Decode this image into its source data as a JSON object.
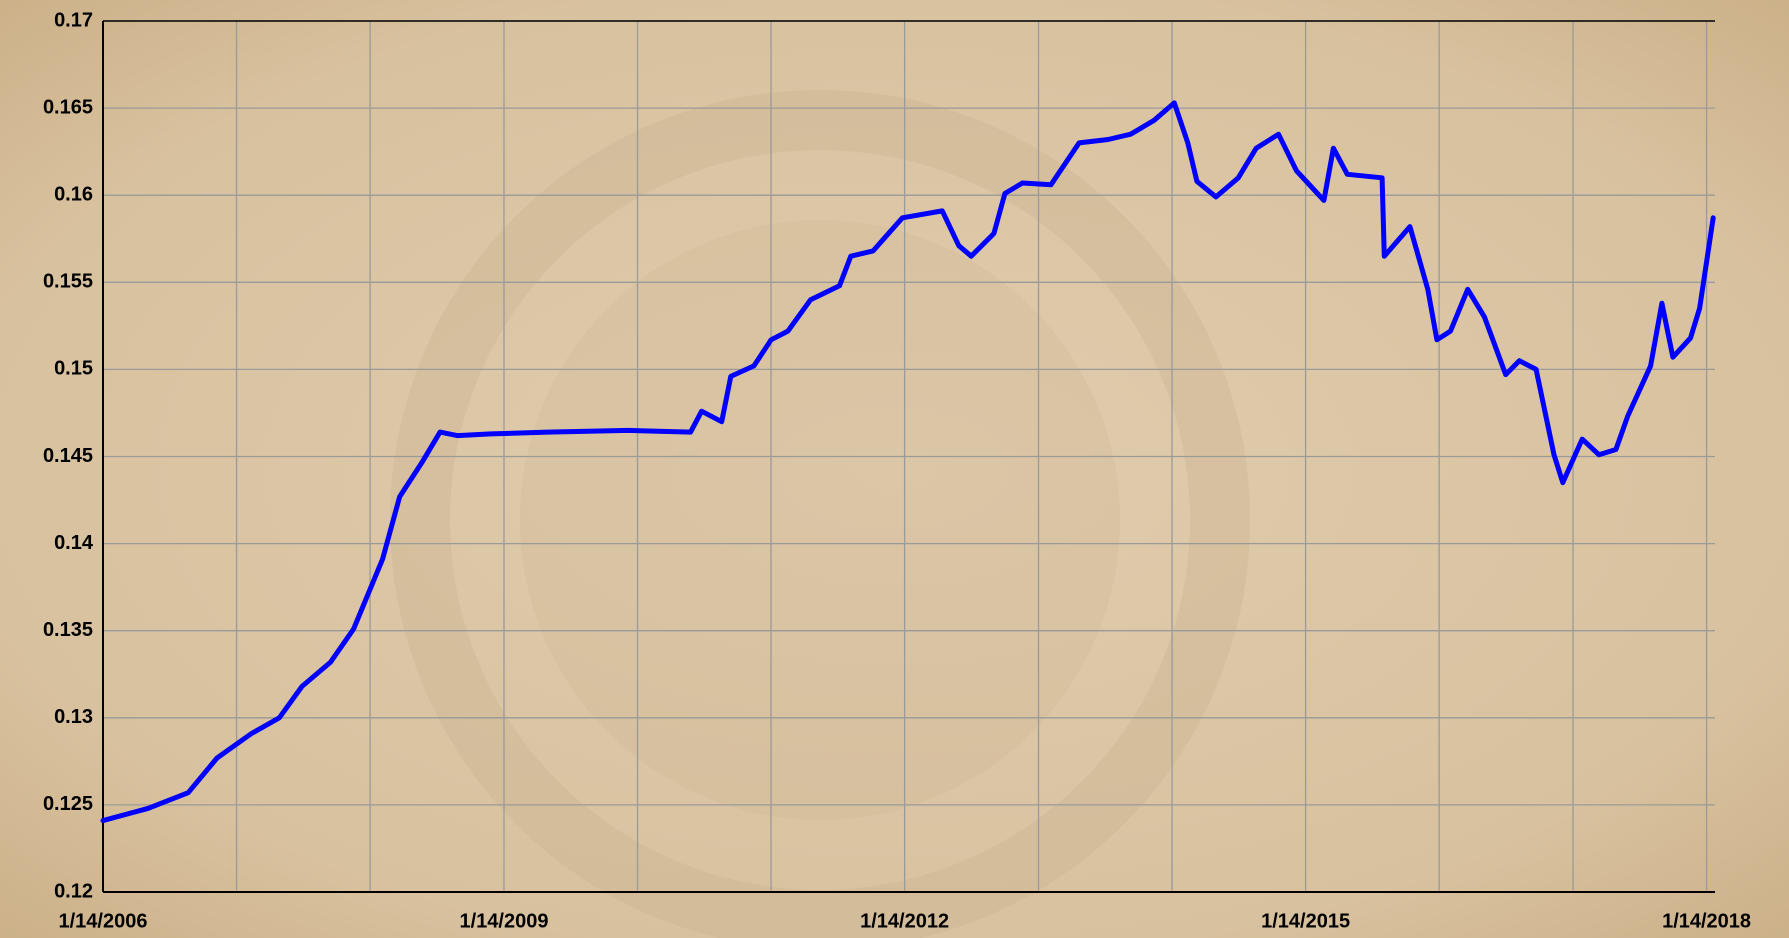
{
  "chart_data": {
    "type": "line",
    "x": [
      "2006-01-14",
      "2006-05-17",
      "2006-09-04",
      "2006-11-22",
      "2007-02-24",
      "2007-05-11",
      "2007-07-12",
      "2007-09-28",
      "2007-11-30",
      "2008-02-17",
      "2008-04-04",
      "2008-06-05",
      "2008-07-23",
      "2008-09-08",
      "2008-12-10",
      "2009-05-14",
      "2009-12-20",
      "2010-06-08",
      "2010-07-08",
      "2010-09-01",
      "2010-09-26",
      "2010-11-28",
      "2011-01-14",
      "2011-03-01",
      "2011-05-02",
      "2011-07-20",
      "2011-08-20",
      "2011-10-20",
      "2012-01-08",
      "2012-04-26",
      "2012-06-10",
      "2012-07-14",
      "2012-09-14",
      "2012-10-14",
      "2012-12-01",
      "2013-02-17",
      "2013-05-05",
      "2013-07-23",
      "2013-09-23",
      "2013-11-26",
      "2014-01-20",
      "2014-02-26",
      "2014-03-23",
      "2014-05-14",
      "2014-07-14",
      "2014-09-01",
      "2014-11-01",
      "2014-12-20",
      "2015-01-20",
      "2015-03-05",
      "2015-03-31",
      "2015-05-08",
      "2015-08-11",
      "2015-08-17",
      "2015-10-26",
      "2015-12-14",
      "2016-01-08",
      "2016-02-14",
      "2016-04-01",
      "2016-05-17",
      "2016-07-14",
      "2016-08-20",
      "2016-10-05",
      "2016-11-23",
      "2016-12-17",
      "2017-02-08",
      "2017-03-26",
      "2017-05-11",
      "2017-06-12",
      "2017-08-14",
      "2017-09-14",
      "2017-10-14",
      "2017-12-01",
      "2017-12-26",
      "2018-02-01"
    ],
    "series": [
      {
        "color": "#0000ff",
        "values": [
          0.1241,
          0.1248,
          0.1257,
          0.1277,
          0.1291,
          0.13,
          0.1318,
          0.1332,
          0.1351,
          0.1391,
          0.1427,
          0.1447,
          0.1464,
          0.1462,
          0.1463,
          0.1464,
          0.1465,
          0.1464,
          0.1476,
          0.147,
          0.1496,
          0.1502,
          0.1517,
          0.1522,
          0.154,
          0.1548,
          0.1565,
          0.1568,
          0.1587,
          0.1591,
          0.1571,
          0.1565,
          0.1578,
          0.1601,
          0.1607,
          0.1606,
          0.163,
          0.1632,
          0.1635,
          0.1643,
          0.1653,
          0.163,
          0.1608,
          0.1599,
          0.161,
          0.1627,
          0.1635,
          0.1614,
          0.1607,
          0.1597,
          0.1627,
          0.1612,
          0.161,
          0.1565,
          0.1582,
          0.1546,
          0.1517,
          0.1522,
          0.1546,
          0.153,
          0.1497,
          0.1505,
          0.15,
          0.1451,
          0.1435,
          0.146,
          0.1451,
          0.1454,
          0.1473,
          0.1502,
          0.1538,
          0.1507,
          0.1518,
          0.1535,
          0.1587
        ]
      }
    ],
    "xlim": [
      "2006-01-14",
      "2018-02-06"
    ],
    "xticks": [
      {
        "value": "2006-01-14",
        "label": "1/14/2006"
      },
      {
        "value": "2007-01-14"
      },
      {
        "value": "2008-01-14"
      },
      {
        "value": "2009-01-14",
        "label": "1/14/2009"
      },
      {
        "value": "2010-01-14"
      },
      {
        "value": "2011-01-14"
      },
      {
        "value": "2012-01-14",
        "label": "1/14/2012"
      },
      {
        "value": "2013-01-14"
      },
      {
        "value": "2014-01-14"
      },
      {
        "value": "2015-01-14",
        "label": "1/14/2015"
      },
      {
        "value": "2016-01-14"
      },
      {
        "value": "2017-01-14"
      },
      {
        "value": "2018-01-14",
        "label": "1/14/2018"
      }
    ],
    "ylim": [
      0.12,
      0.17
    ],
    "yticks": [
      0.12,
      0.125,
      0.13,
      0.135,
      0.14,
      0.145,
      0.15,
      0.155,
      0.16,
      0.165,
      0.17
    ],
    "grid": true
  }
}
